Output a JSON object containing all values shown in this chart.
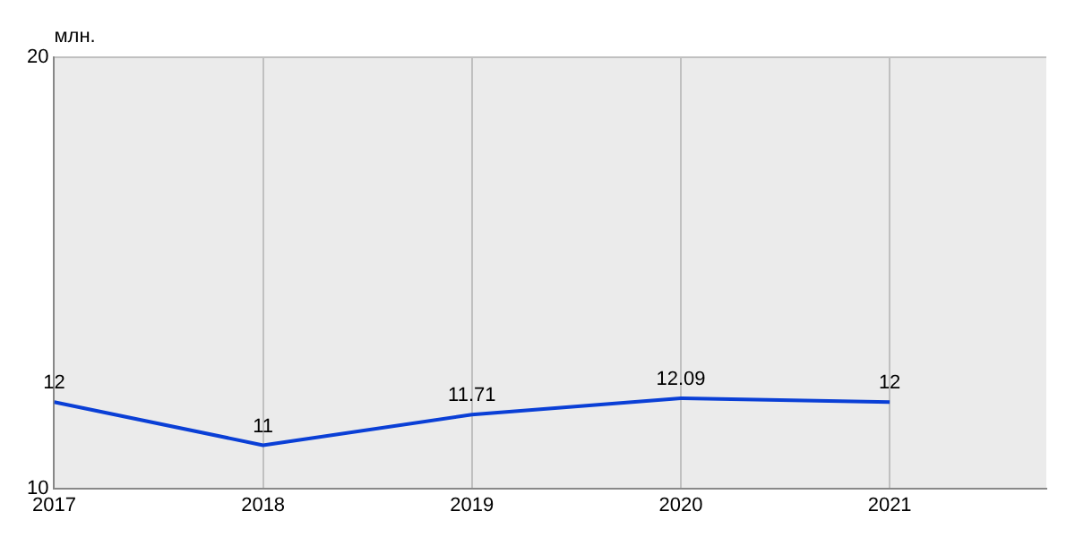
{
  "chart_data": {
    "type": "line",
    "ylabel": "млн.",
    "x": [
      2017,
      2018,
      2019,
      2020,
      2021
    ],
    "series": [
      {
        "color": "#0a3fd6",
        "values": [
          12,
          11,
          11.71,
          12.09,
          12
        ]
      }
    ],
    "xlim": [
      2017,
      2021.75
    ],
    "xticks": [
      2017,
      2018,
      2019,
      2020,
      2021
    ],
    "ylim": [
      10,
      20
    ],
    "yticks": [
      10,
      20
    ],
    "grid": true,
    "data_labels": true,
    "marker": "none",
    "line_style": "solid",
    "legend": false
  }
}
